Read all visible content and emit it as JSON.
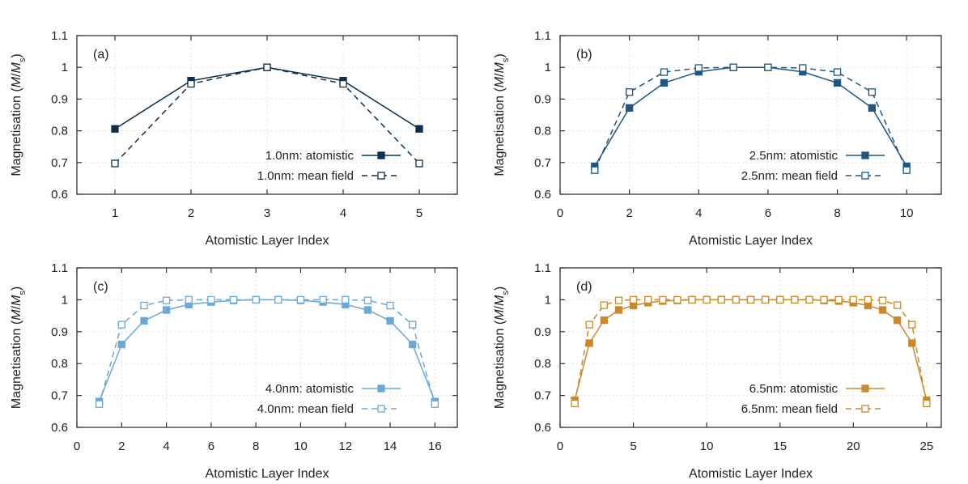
{
  "chart_data": [
    {
      "type": "line",
      "panel_label": "(a)",
      "color": "#0d2f4a",
      "xlabel": "Atomistic Layer Index",
      "ylabel_main": "Magnetisation (",
      "ylabel_M": "M",
      "ylabel_slash": "/",
      "ylabel_Ms": "M",
      "ylabel_sub": "s",
      "ylabel_close": ")",
      "xlim": [
        0.5,
        5.5
      ],
      "ylim": [
        0.6,
        1.1
      ],
      "xticks": [
        1,
        2,
        3,
        4,
        5
      ],
      "yticks": [
        0.6,
        0.7,
        0.8,
        0.9,
        1.0,
        1.1
      ],
      "ytick_labels": [
        "0.6",
        "0.7",
        "0.8",
        "0.9",
        "1",
        "1.1"
      ],
      "legend_position": "bottom-right",
      "series": [
        {
          "name": "1.0nm: atomistic",
          "style": "solid-filled",
          "x": [
            1,
            2,
            3,
            4,
            5
          ],
          "y": [
            0.806,
            0.958,
            1.0,
            0.958,
            0.806
          ]
        },
        {
          "name": "1.0nm: mean field",
          "style": "dashed-open",
          "x": [
            1,
            2,
            3,
            4,
            5
          ],
          "y": [
            0.697,
            0.948,
            1.0,
            0.948,
            0.697
          ]
        }
      ]
    },
    {
      "type": "line",
      "panel_label": "(b)",
      "color": "#1f5682",
      "xlabel": "Atomistic Layer Index",
      "ylabel_main": "Magnetisation (",
      "ylabel_M": "M",
      "ylabel_slash": "/",
      "ylabel_Ms": "M",
      "ylabel_sub": "s",
      "ylabel_close": ")",
      "xlim": [
        0,
        11
      ],
      "ylim": [
        0.6,
        1.1
      ],
      "xticks": [
        0,
        2,
        4,
        6,
        8,
        10
      ],
      "yticks": [
        0.6,
        0.7,
        0.8,
        0.9,
        1.0,
        1.1
      ],
      "ytick_labels": [
        "0.6",
        "0.7",
        "0.8",
        "0.9",
        "1",
        "1.1"
      ],
      "legend_position": "bottom-right",
      "series": [
        {
          "name": "2.5nm: atomistic",
          "style": "solid-filled",
          "x": [
            1,
            2,
            3,
            4,
            5,
            6,
            7,
            8,
            9,
            10
          ],
          "y": [
            0.688,
            0.872,
            0.951,
            0.986,
            1.0,
            1.0,
            0.986,
            0.951,
            0.872,
            0.688
          ]
        },
        {
          "name": "2.5nm: mean field",
          "style": "dashed-open",
          "x": [
            1,
            2,
            3,
            4,
            5,
            6,
            7,
            8,
            9,
            10
          ],
          "y": [
            0.676,
            0.922,
            0.985,
            0.998,
            1.0,
            1.0,
            0.998,
            0.985,
            0.922,
            0.676
          ]
        }
      ]
    },
    {
      "type": "line",
      "panel_label": "(c)",
      "color": "#6aa8d8",
      "xlabel": "Atomistic Layer Index",
      "ylabel_main": "Magnetisation (",
      "ylabel_M": "M",
      "ylabel_slash": "/",
      "ylabel_Ms": "M",
      "ylabel_sub": "s",
      "ylabel_close": ")",
      "xlim": [
        0,
        17
      ],
      "ylim": [
        0.6,
        1.1
      ],
      "xticks": [
        0,
        2,
        4,
        6,
        8,
        10,
        12,
        14,
        16
      ],
      "yticks": [
        0.6,
        0.7,
        0.8,
        0.9,
        1.0,
        1.1
      ],
      "ytick_labels": [
        "0.6",
        "0.7",
        "0.8",
        "0.9",
        "1",
        "1.1"
      ],
      "legend_position": "bottom-right",
      "series": [
        {
          "name": "4.0nm: atomistic",
          "style": "solid-filled",
          "x": [
            1,
            2,
            3,
            4,
            5,
            6,
            7,
            8,
            9,
            10,
            11,
            12,
            13,
            14,
            15,
            16
          ],
          "y": [
            0.681,
            0.86,
            0.934,
            0.968,
            0.985,
            0.993,
            0.998,
            1.0,
            1.0,
            0.998,
            0.993,
            0.985,
            0.968,
            0.934,
            0.86,
            0.681
          ]
        },
        {
          "name": "4.0nm: mean field",
          "style": "dashed-open",
          "x": [
            1,
            2,
            3,
            4,
            5,
            6,
            7,
            8,
            9,
            10,
            11,
            12,
            13,
            14,
            15,
            16
          ],
          "y": [
            0.673,
            0.922,
            0.982,
            0.998,
            1.0,
            1.0,
            1.0,
            1.0,
            1.0,
            1.0,
            1.0,
            1.0,
            0.998,
            0.982,
            0.922,
            0.673
          ]
        }
      ]
    },
    {
      "type": "line",
      "panel_label": "(d)",
      "color": "#c98a2e",
      "xlabel": "Atomistic Layer Index",
      "ylabel_main": "Magnetisation (",
      "ylabel_M": "M",
      "ylabel_slash": "/",
      "ylabel_Ms": "M",
      "ylabel_sub": "s",
      "ylabel_close": ")",
      "xlim": [
        0,
        26
      ],
      "ylim": [
        0.6,
        1.1
      ],
      "xticks": [
        0,
        5,
        10,
        15,
        20,
        25
      ],
      "yticks": [
        0.6,
        0.7,
        0.8,
        0.9,
        1.0,
        1.1
      ],
      "ytick_labels": [
        "0.6",
        "0.7",
        "0.8",
        "0.9",
        "1",
        "1.1"
      ],
      "legend_position": "bottom-right",
      "series": [
        {
          "name": "6.5nm: atomistic",
          "style": "solid-filled",
          "x": [
            1,
            2,
            3,
            4,
            5,
            6,
            7,
            8,
            9,
            10,
            11,
            12,
            13,
            14,
            15,
            16,
            17,
            18,
            19,
            20,
            21,
            22,
            23,
            24,
            25
          ],
          "y": [
            0.685,
            0.864,
            0.936,
            0.968,
            0.982,
            0.991,
            0.996,
            0.998,
            1.0,
            1.0,
            1.0,
            1.0,
            1.0,
            1.0,
            1.0,
            1.0,
            1.0,
            0.998,
            0.996,
            0.991,
            0.982,
            0.968,
            0.936,
            0.864,
            0.685
          ]
        },
        {
          "name": "6.5nm: mean field",
          "style": "dashed-open",
          "x": [
            1,
            2,
            3,
            4,
            5,
            6,
            7,
            8,
            9,
            10,
            11,
            12,
            13,
            14,
            15,
            16,
            17,
            18,
            19,
            20,
            21,
            22,
            23,
            24,
            25
          ],
          "y": [
            0.675,
            0.922,
            0.983,
            0.998,
            1.0,
            1.0,
            1.0,
            1.0,
            1.0,
            1.0,
            1.0,
            1.0,
            1.0,
            1.0,
            1.0,
            1.0,
            1.0,
            1.0,
            1.0,
            1.0,
            1.0,
            0.998,
            0.983,
            0.922,
            0.675
          ]
        }
      ]
    }
  ]
}
